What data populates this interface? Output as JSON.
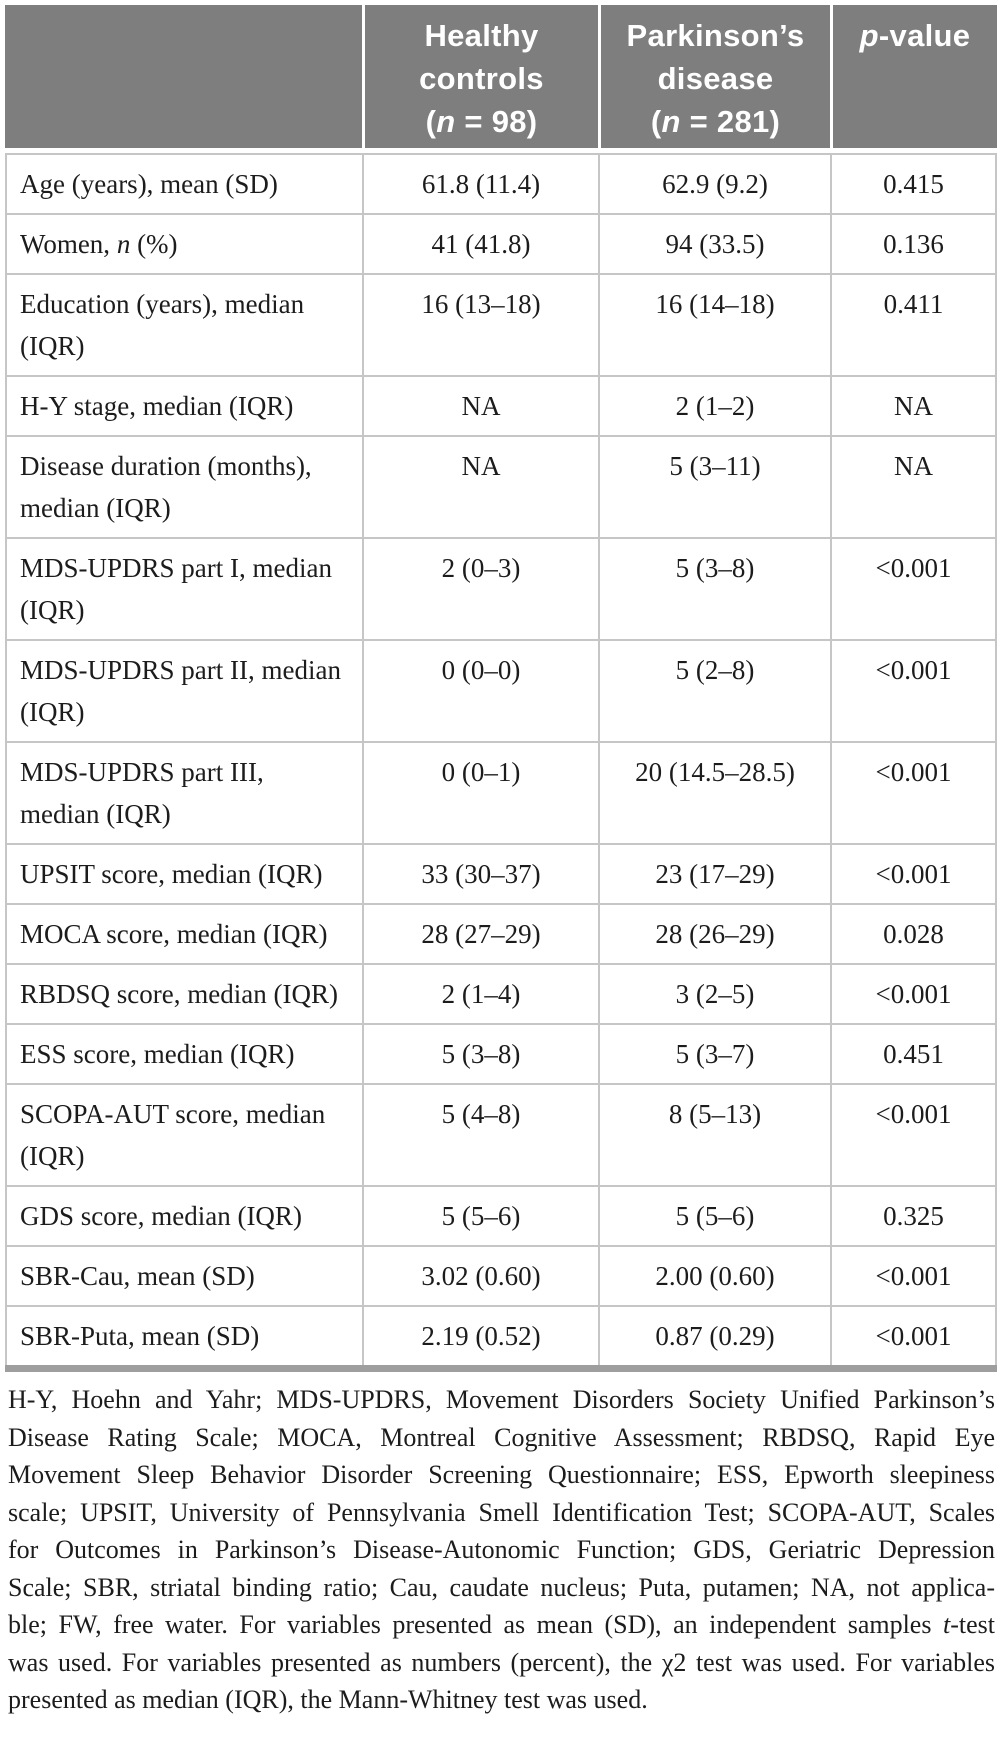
{
  "colors": {
    "header_bg": "#7e7e7e",
    "header_text": "#ffffff",
    "body_text": "#1c1c1c",
    "grid_line": "#c6c6c6",
    "bottom_bar": "#9e9e9e"
  },
  "table": {
    "header": {
      "col2": {
        "title": "Healthy controls",
        "n_open": "(",
        "n_italic": "n",
        "n_rest": " = 98)"
      },
      "col3": {
        "title": "Parkinson’s disease",
        "n_open": "(",
        "n_italic": "n",
        "n_rest": " = 281)"
      },
      "col4": {
        "p_italic": "p",
        "rest": "-value"
      }
    },
    "rows": [
      {
        "label": "Age (years), mean (SD)",
        "hc": "61.8 (11.4)",
        "pd": "62.9 (9.2)",
        "p": "0.415"
      },
      {
        "label_pre": "Women, ",
        "label_it": "n",
        "label_post": " (%)",
        "hc": "41 (41.8)",
        "pd": "94 (33.5)",
        "p": "0.136"
      },
      {
        "label": "Education (years), median",
        "label2": "(IQR)",
        "hc": "16 (13–18)",
        "pd": "16 (14–18)",
        "p": "0.411"
      },
      {
        "label": "H-Y stage, median (IQR)",
        "hc": "NA",
        "pd": "2 (1–2)",
        "p": "NA"
      },
      {
        "label": "Disease duration (months),",
        "label2": "median (IQR)",
        "hc": "NA",
        "pd": "5 (3–11)",
        "p": "NA"
      },
      {
        "label": "MDS-UPDRS part I, median",
        "label2": "(IQR)",
        "hc": "2 (0–3)",
        "pd": "5 (3–8)",
        "p": "<0.001"
      },
      {
        "label": "MDS-UPDRS part II, median",
        "label2": "(IQR)",
        "hc": "0 (0–0)",
        "pd": "5 (2–8)",
        "p": "<0.001"
      },
      {
        "label": "MDS-UPDRS part III,",
        "label2": "median (IQR)",
        "hc": "0 (0–1)",
        "pd": "20 (14.5–28.5)",
        "p": "<0.001"
      },
      {
        "label": "UPSIT score, median (IQR)",
        "hc": "33 (30–37)",
        "pd": "23 (17–29)",
        "p": "<0.001"
      },
      {
        "label": "MOCA score, median (IQR)",
        "hc": "28 (27–29)",
        "pd": "28 (26–29)",
        "p": "0.028"
      },
      {
        "label": "RBDSQ score, median (IQR)",
        "hc": "2 (1–4)",
        "pd": "3 (2–5)",
        "p": "<0.001"
      },
      {
        "label": "ESS score, median (IQR)",
        "hc": "5 (3–8)",
        "pd": "5 (3–7)",
        "p": "0.451"
      },
      {
        "label": "SCOPA-AUT score, median",
        "label2": "(IQR)",
        "hc": "5 (4–8)",
        "pd": "8 (5–13)",
        "p": "<0.001"
      },
      {
        "label": "GDS score, median (IQR)",
        "hc": "5 (5–6)",
        "pd": "5 (5–6)",
        "p": "0.325"
      },
      {
        "label": "SBR-Cau, mean (SD)",
        "hc": "3.02 (0.60)",
        "pd": "2.00 (0.60)",
        "p": "<0.001"
      },
      {
        "label": "SBR-Puta, mean (SD)",
        "hc": "2.19 (0.52)",
        "pd": "0.87 (0.29)",
        "p": "<0.001"
      }
    ]
  },
  "footnote": {
    "lines": [
      {
        "text": "H-Y, Hoehn and Yahr; MDS-UPDRS, Movement Disorders Society Unified Parkinson’s"
      },
      {
        "text": "Disease Rating Scale; MOCA, Montreal Cognitive Assessment; RBDSQ, Rapid Eye"
      },
      {
        "text": "Movement Sleep Behavior Disorder Screening Questionnaire; ESS, Epworth sleepiness"
      },
      {
        "text": "scale; UPSIT, University of Pennsylvania Smell Identification Test; SCOPA-AUT, Scales"
      },
      {
        "text": "for Outcomes in Parkinson’s Disease-Autonomic Function; GDS, Geriatric Depression"
      },
      {
        "text": "Scale; SBR, striatal binding ratio; Cau, caudate nucleus; Puta, putamen; NA, not applica-"
      },
      {
        "pre": "ble; FW, free water. For variables presented as mean (SD), an independent samples ",
        "italic": "t",
        "post": "-test"
      },
      {
        "text": "was used. For variables presented as numbers (percent), the χ2 test was used. For variables"
      },
      {
        "text": "presented as median (IQR), the Mann-Whitney test was used."
      }
    ]
  }
}
